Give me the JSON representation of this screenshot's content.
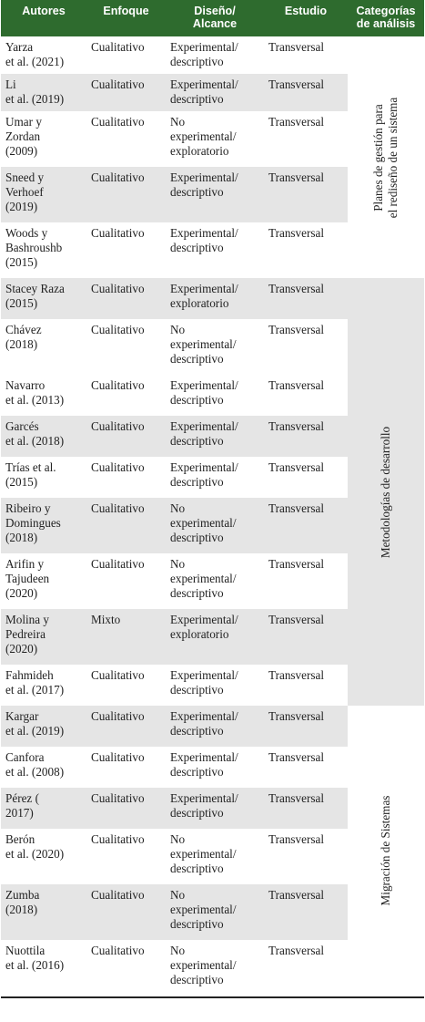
{
  "header": {
    "autores": "Autores",
    "enfoque": "Enfoque",
    "diseno_1": "Diseño/",
    "diseno_2": "Alcance",
    "estudio": "Estudio",
    "categorias_1": "Categorías",
    "categorias_2": "de análisis"
  },
  "categories": [
    {
      "line1": "Planes de gestión para",
      "line2": "el rediseño de un sistema"
    },
    {
      "line1": "Metodologías de desarrollo",
      "line2": ""
    },
    {
      "line1": "Migración de Sistemas",
      "line2": ""
    }
  ],
  "rows": [
    {
      "autores": [
        "Yarza",
        "et al. (2021)"
      ],
      "enfoque": "Cualitativo",
      "diseno": [
        "Experimental/",
        "descriptivo"
      ],
      "estudio": "Transversal"
    },
    {
      "autores": [
        "Li",
        "et al. (2019)"
      ],
      "enfoque": "Cualitativo",
      "diseno": [
        "Experimental/",
        "descriptivo"
      ],
      "estudio": "Transversal"
    },
    {
      "autores": [
        "Umar y",
        "Zordan",
        "(2009)"
      ],
      "enfoque": "Cualitativo",
      "diseno": [
        "No",
        "experimental/",
        "exploratorio"
      ],
      "estudio": "Transversal"
    },
    {
      "autores": [
        "Sneed y",
        "Verhoef",
        "(2019)"
      ],
      "enfoque": "Cualitativo",
      "diseno": [
        "Experimental/",
        "descriptivo"
      ],
      "estudio": "Transversal"
    },
    {
      "autores": [
        "Woods y",
        "Bashroushb",
        "(2015)"
      ],
      "enfoque": "Cualitativo",
      "diseno": [
        "Experimental/",
        "descriptivo"
      ],
      "estudio": "Transversal"
    },
    {
      "autores": [
        "Stacey Raza",
        "(2015)"
      ],
      "enfoque": "Cualitativo",
      "diseno": [
        "Experimental/",
        "exploratorio"
      ],
      "estudio": "Transversal"
    },
    {
      "autores": [
        "Chávez",
        "(2018)"
      ],
      "enfoque": "Cualitativo",
      "diseno": [
        "No",
        "experimental/",
        "descriptivo"
      ],
      "estudio": "Transversal"
    },
    {
      "autores": [
        "Navarro",
        "et al. (2013)"
      ],
      "enfoque": "Cualitativo",
      "diseno": [
        "Experimental/",
        "descriptivo"
      ],
      "estudio": "Transversal"
    },
    {
      "autores": [
        "Garcés",
        "et al. (2018)"
      ],
      "enfoque": "Cualitativo",
      "diseno": [
        "Experimental/",
        "descriptivo"
      ],
      "estudio": "Transversal"
    },
    {
      "autores": [
        "Trías et al.",
        "(2015)"
      ],
      "enfoque": "Cualitativo",
      "diseno": [
        "Experimental/",
        "descriptivo"
      ],
      "estudio": "Transversal"
    },
    {
      "autores": [
        "Ribeiro y",
        "Domingues",
        "(2018)"
      ],
      "enfoque": "Cualitativo",
      "diseno": [
        "No",
        "experimental/",
        "descriptivo"
      ],
      "estudio": "Transversal"
    },
    {
      "autores": [
        "Arifin y",
        "Tajudeen",
        "(2020)"
      ],
      "enfoque": "Cualitativo",
      "diseno": [
        "No",
        "experimental/",
        "descriptivo"
      ],
      "estudio": "Transversal"
    },
    {
      "autores": [
        "Molina y",
        "Pedreira",
        "(2020)"
      ],
      "enfoque": "Mixto",
      "diseno": [
        "Experimental/",
        "exploratorio"
      ],
      "estudio": "Transversal"
    },
    {
      "autores": [
        "Fahmideh",
        "et al. (2017)"
      ],
      "enfoque": "Cualitativo",
      "diseno": [
        "Experimental/",
        "descriptivo"
      ],
      "estudio": "Transversal"
    },
    {
      "autores": [
        "Kargar",
        "et al. (2019)"
      ],
      "enfoque": "Cualitativo",
      "diseno": [
        "Experimental/",
        "descriptivo"
      ],
      "estudio": "Transversal"
    },
    {
      "autores": [
        "Canfora",
        "et al. (2008)"
      ],
      "enfoque": "Cualitativo",
      "diseno": [
        "Experimental/",
        "descriptivo"
      ],
      "estudio": "Transversal"
    },
    {
      "autores": [
        "Pérez (",
        "2017)"
      ],
      "enfoque": "Cualitativo",
      "diseno": [
        "Experimental/",
        "descriptivo"
      ],
      "estudio": "Transversal"
    },
    {
      "autores": [
        "Berón",
        "et al. (2020)"
      ],
      "enfoque": "Cualitativo",
      "diseno": [
        "No",
        "experimental/",
        "descriptivo"
      ],
      "estudio": "Transversal"
    },
    {
      "autores": [
        "Zumba",
        "(2018)"
      ],
      "enfoque": "Cualitativo",
      "diseno": [
        "No",
        "experimental/",
        "descriptivo"
      ],
      "estudio": "Transversal"
    },
    {
      "autores": [
        "Nuottila",
        "et al. (2016)"
      ],
      "enfoque": "Cualitativo",
      "diseno": [
        "No",
        "experimental/",
        "descriptivo"
      ],
      "estudio": "Transversal"
    }
  ]
}
